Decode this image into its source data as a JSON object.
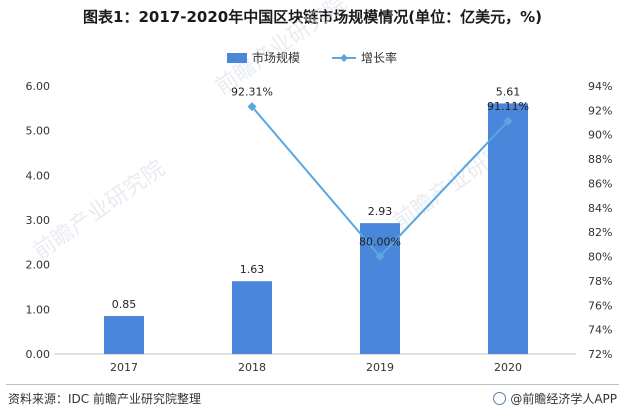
{
  "title": "图表1：2017-2020年中国区块链市场规模情况(单位：亿美元，%)",
  "footer": {
    "source": "资料来源：IDC 前瞻产业研究院整理",
    "brand": "@前瞻经济学人APP"
  },
  "colors": {
    "bar": "#4a86d9",
    "line": "#5aa6e0"
  },
  "chart_data": {
    "type": "bar",
    "categories": [
      "2017",
      "2018",
      "2019",
      "2020"
    ],
    "series": [
      {
        "name": "市场规模",
        "type": "bar",
        "axis": "left",
        "values": [
          0.85,
          1.63,
          2.93,
          5.61
        ],
        "labels": [
          "0.85",
          "1.63",
          "2.93",
          "5.61"
        ]
      },
      {
        "name": "增长率",
        "type": "line",
        "axis": "right",
        "values": [
          null,
          92.31,
          80.0,
          91.11
        ],
        "labels": [
          "",
          "92.31%",
          "80.00%",
          "91.11%"
        ]
      }
    ],
    "ylim_left": [
      0,
      6
    ],
    "yticks_left": [
      "0.00",
      "1.00",
      "2.00",
      "3.00",
      "4.00",
      "5.00",
      "6.00"
    ],
    "ylim_right": [
      72,
      94
    ],
    "yticks_right": [
      "72%",
      "74%",
      "76%",
      "78%",
      "80%",
      "82%",
      "84%",
      "86%",
      "88%",
      "90%",
      "92%",
      "94%"
    ],
    "legend_position": "top",
    "grid": false
  },
  "watermarks": [
    "前瞻产业研究院",
    "前瞻产业研究院",
    "前瞻产业研究院"
  ]
}
